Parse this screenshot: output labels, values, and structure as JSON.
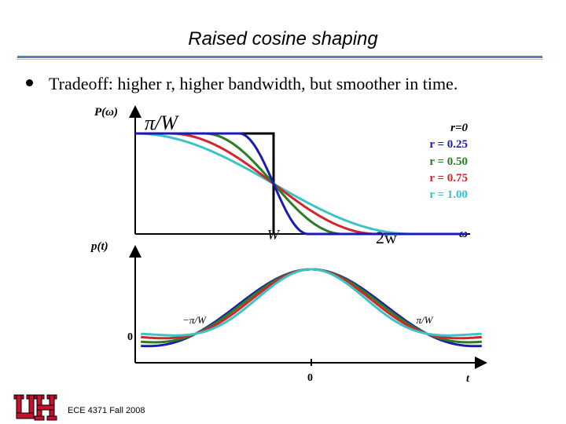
{
  "slide": {
    "title": "Raised cosine shaping",
    "bullet": "Tradeoff: higher r, higher bandwidth, but smoother in time.",
    "footer": "ECE 4371 Fall 2008",
    "logo_text": "UH"
  },
  "colors": {
    "accent_rule": "#5b7fb8",
    "r0": "#1b1bb0",
    "r025": "#1b1bb0",
    "r050": "#2a7d22",
    "r075": "#d4262a",
    "r100": "#3cc3c8",
    "logo": "#c8102e"
  },
  "top_plot": {
    "ylabel": "P(ω)",
    "peak_label": "π/W",
    "x_mark_W": "W",
    "x_mark_2W": "2w",
    "x_axis_label": "ω"
  },
  "legend": {
    "items": [
      {
        "label": "r=0",
        "color": "#000000"
      },
      {
        "label": "r = 0.25",
        "color": "#1b1bb0"
      },
      {
        "label": "r = 0.50",
        "color": "#2a7d22"
      },
      {
        "label": "r = 0.75",
        "color": "#d4262a"
      },
      {
        "label": "r = 1.00",
        "color": "#3cc3c8"
      }
    ]
  },
  "bottom_plot": {
    "ylabel": "p(t)",
    "zero_label_y": "0",
    "zero_label_t": "0",
    "x_axis_label": "t",
    "neg_zero": "−π/W",
    "pos_zero": "π/W"
  },
  "chart_data": [
    {
      "type": "line",
      "title": "",
      "xlabel": "ω",
      "ylabel": "P(ω)",
      "x_ticks": [
        "W",
        "2w"
      ],
      "y_ticks": [
        "π/W"
      ],
      "series": [
        {
          "name": "r=0",
          "rolloff": 0.0
        },
        {
          "name": "r = 0.25",
          "rolloff": 0.25
        },
        {
          "name": "r = 0.50",
          "rolloff": 0.5
        },
        {
          "name": "r = 0.75",
          "rolloff": 0.75
        },
        {
          "name": "r = 1.00",
          "rolloff": 1.0
        }
      ],
      "xlim": [
        0,
        2.4
      ],
      "ylim": [
        0,
        1
      ]
    },
    {
      "type": "line",
      "title": "",
      "xlabel": "t",
      "ylabel": "p(t)",
      "x_ticks": [
        "−π/W",
        "0",
        "π/W"
      ],
      "series": [
        {
          "name": "r = 0.25",
          "rolloff": 0.25
        },
        {
          "name": "r = 0.50",
          "rolloff": 0.5
        },
        {
          "name": "r = 0.75",
          "rolloff": 0.75
        },
        {
          "name": "r = 1.00",
          "rolloff": 1.0
        }
      ],
      "xlim": [
        -3.5,
        3.5
      ],
      "ylim": [
        -0.25,
        1
      ]
    }
  ]
}
